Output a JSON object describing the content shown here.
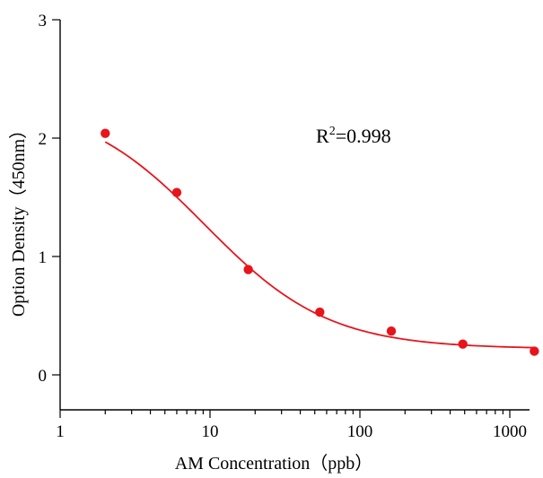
{
  "chart_data": {
    "type": "scatter",
    "title": "",
    "xlabel": "AM Concentration（ppb）",
    "ylabel": "Option Density（450nm）",
    "xscale": "log",
    "xlim": [
      1,
      1500
    ],
    "ylim": [
      -0.3,
      3
    ],
    "x_ticks": [
      1,
      10,
      100,
      1000
    ],
    "x_tick_labels": [
      "1",
      "10",
      "100",
      "1000"
    ],
    "y_ticks": [
      0,
      1,
      2,
      3
    ],
    "y_tick_labels": [
      "0",
      "1",
      "2",
      "3"
    ],
    "grid": false,
    "legend": "none",
    "colors": {
      "series": "#e8141b",
      "axis": "#000000"
    },
    "series": [
      {
        "points": [
          {
            "x": 2,
            "y": 2.04
          },
          {
            "x": 6,
            "y": 1.54
          },
          {
            "x": 18,
            "y": 0.89
          },
          {
            "x": 54,
            "y": 0.53
          },
          {
            "x": 162,
            "y": 0.37
          },
          {
            "x": 486,
            "y": 0.26
          },
          {
            "x": 1458,
            "y": 0.2
          }
        ],
        "fit": {
          "model": "four-parameter logistic",
          "top": 2.32,
          "bottom": 0.22,
          "ec50": 9.2,
          "hill": 1.05
        }
      }
    ],
    "annotations": [
      {
        "text_main": "R",
        "text_sup": "2",
        "text_tail": "=0.998"
      }
    ]
  }
}
